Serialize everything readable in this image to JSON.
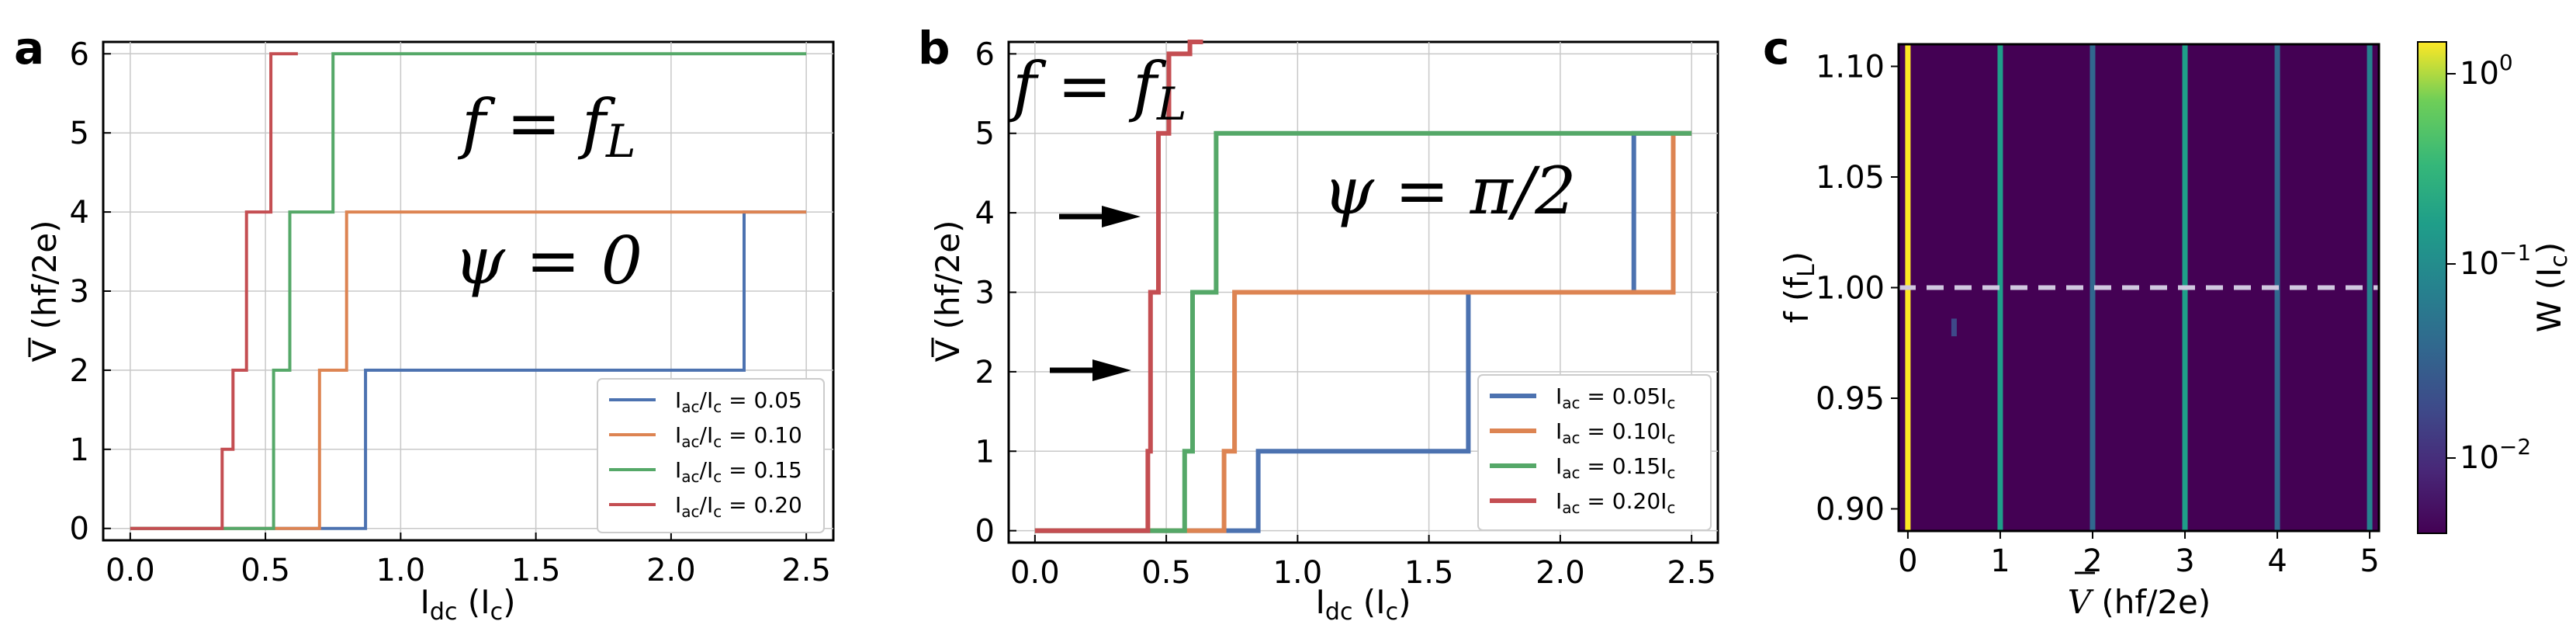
{
  "chart_data": [
    {
      "panel": "a",
      "type": "line",
      "xlabel": "Idc (Ic)",
      "ylabel": "V (hf/2e)",
      "xlim": [
        -0.1,
        2.6
      ],
      "ylim": [
        -0.15,
        6.15
      ],
      "xticks": [
        "0.0",
        "0.5",
        "1.0",
        "1.5",
        "2.0",
        "2.5"
      ],
      "yticks": [
        "0",
        "1",
        "2",
        "3",
        "4",
        "5",
        "6"
      ],
      "grid": true,
      "legend_position": "lower-right",
      "annotations": [
        "f = fL",
        "ψ = 0"
      ],
      "series": [
        {
          "name": "Iac/Ic = 0.05",
          "color": "#4c72b0",
          "x": [
            0,
            0.87,
            0.87,
            2.27,
            2.27,
            2.5
          ],
          "y": [
            0,
            0,
            2,
            2,
            4,
            4
          ]
        },
        {
          "name": "Iac/Ic = 0.10",
          "color": "#dd8452",
          "x": [
            0,
            0.7,
            0.7,
            0.8,
            0.8,
            2.5
          ],
          "y": [
            0,
            0,
            2,
            2,
            4,
            4
          ]
        },
        {
          "name": "Iac/Ic = 0.15",
          "color": "#55a868",
          "x": [
            0,
            0.53,
            0.53,
            0.59,
            0.59,
            0.75,
            0.75,
            2.5
          ],
          "y": [
            0,
            0,
            2,
            2,
            4,
            4,
            6,
            6
          ]
        },
        {
          "name": "Iac/Ic = 0.20",
          "color": "#c44e52",
          "x": [
            0,
            0.34,
            0.34,
            0.38,
            0.38,
            0.43,
            0.43,
            0.52,
            0.52,
            0.62
          ],
          "y": [
            0,
            0,
            1,
            1,
            2,
            2,
            4,
            4,
            6,
            6
          ]
        }
      ]
    },
    {
      "panel": "b",
      "type": "line",
      "xlabel": "Idc (Ic)",
      "ylabel": "V (hf/2e)",
      "xlim": [
        -0.1,
        2.6
      ],
      "ylim": [
        -0.15,
        6.15
      ],
      "xticks": [
        "0.0",
        "0.5",
        "1.0",
        "1.5",
        "2.0",
        "2.5"
      ],
      "yticks": [
        "0",
        "1",
        "2",
        "3",
        "4",
        "5",
        "6"
      ],
      "grid": true,
      "legend_position": "lower-right",
      "annotations": [
        "f = fL",
        "ψ = π/2"
      ],
      "arrows_at_y": [
        4,
        2
      ],
      "series": [
        {
          "name": "Iac = 0.05Ic",
          "color": "#4c72b0",
          "x": [
            0,
            0.85,
            0.85,
            1.65,
            1.65,
            2.28,
            2.28,
            2.5
          ],
          "y": [
            0,
            0,
            1,
            1,
            3,
            3,
            5,
            5
          ]
        },
        {
          "name": "Iac = 0.10Ic",
          "color": "#dd8452",
          "x": [
            0,
            0.72,
            0.72,
            0.76,
            0.76,
            2.43,
            2.43,
            2.5
          ],
          "y": [
            0,
            0,
            1,
            1,
            3,
            3,
            5,
            5
          ]
        },
        {
          "name": "Iac = 0.15Ic",
          "color": "#55a868",
          "x": [
            0,
            0.57,
            0.57,
            0.6,
            0.6,
            0.69,
            0.69,
            2.5
          ],
          "y": [
            0,
            0,
            1,
            1,
            3,
            3,
            5,
            5
          ]
        },
        {
          "name": "Iac = 0.20Ic",
          "color": "#c44e52",
          "x": [
            0,
            0.43,
            0.43,
            0.44,
            0.44,
            0.47,
            0.47,
            0.51,
            0.51,
            0.59,
            0.59,
            0.64
          ],
          "y": [
            0,
            0,
            1,
            1,
            3,
            3,
            5,
            5,
            6,
            6,
            6.2,
            6.2
          ]
        }
      ]
    },
    {
      "panel": "c",
      "type": "heatmap",
      "xlabel": "V (hf/2e)",
      "ylabel": "f (fL)",
      "xlim": [
        -0.1,
        5.1
      ],
      "ylim": [
        0.89,
        1.11
      ],
      "xticks": [
        "0",
        "1",
        "2",
        "3",
        "4",
        "5"
      ],
      "yticks": [
        "0.90",
        "0.95",
        "1.00",
        "1.05",
        "1.10"
      ],
      "colorbar_label": "W (Ic)",
      "colorbar_scale": "log",
      "colorbar_ticks": [
        "10⁰",
        "10⁻¹",
        "10⁻²"
      ],
      "background_color": "#440154",
      "dashed_line_at_f": 1.0,
      "stripes": [
        {
          "v": 0,
          "level": 1.0,
          "f": [
            0.89,
            1.11
          ]
        },
        {
          "v": 1,
          "level": 0.45,
          "f": [
            0.89,
            1.11
          ]
        },
        {
          "v": 2,
          "level": 0.15,
          "f": [
            0.89,
            1.11
          ]
        },
        {
          "v": 3,
          "level": 0.45,
          "f": [
            0.89,
            1.11
          ]
        },
        {
          "v": 4,
          "level": 0.08,
          "f": [
            0.89,
            1.11
          ]
        },
        {
          "v": 5,
          "level": 0.25,
          "f": [
            0.89,
            1.11
          ]
        },
        {
          "v": 0.5,
          "level": 0.03,
          "f": [
            0.978,
            0.986
          ]
        }
      ]
    }
  ]
}
